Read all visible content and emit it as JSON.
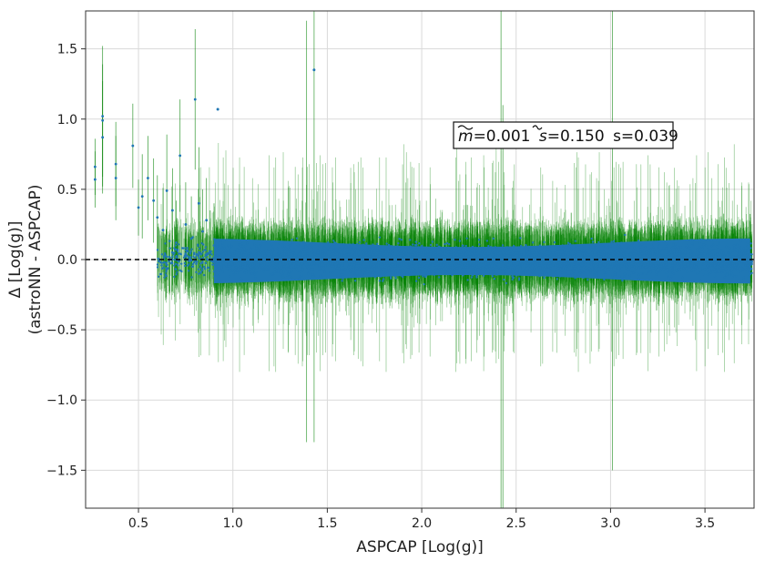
{
  "chart_data": {
    "type": "scatter",
    "title": "",
    "xlabel": "ASPCAP [Log(g)]",
    "ylabel_line1": "Δ [Log(g)]",
    "ylabel_line2": "(astroNN - ASPCAP)",
    "xlim": [
      0.22,
      3.76
    ],
    "ylim": [
      -1.77,
      1.77
    ],
    "xticks": [
      0.5,
      1.0,
      1.5,
      2.0,
      2.5,
      3.0,
      3.5
    ],
    "xtick_labels": [
      "0.5",
      "1.0",
      "1.5",
      "2.0",
      "2.5",
      "3.0",
      "3.5"
    ],
    "yticks": [
      -1.5,
      -1.0,
      -0.5,
      0.0,
      0.5,
      1.0,
      1.5
    ],
    "ytick_labels": [
      "−1.5",
      "−1.0",
      "−0.5",
      "0.0",
      "0.5",
      "1.0",
      "1.5"
    ],
    "grid": true,
    "reference_line_y": 0.0,
    "annotation": {
      "m_label": "m",
      "m_value": "=0.001",
      "s_label": "s",
      "s_value": "=0.150",
      "s2_text": "s=0.039"
    },
    "colors": {
      "points": "#1f77b4",
      "errorbars": "#008000",
      "reference_line": "#000000",
      "grid": "#d9d9d9",
      "axes": "#333333"
    },
    "series": [
      {
        "kind": "scatter_with_errorbars",
        "x": [
          0.27,
          0.27,
          0.31,
          0.31,
          0.31,
          0.38,
          0.38,
          0.47,
          0.5,
          0.52,
          0.55,
          0.58,
          0.6,
          0.63,
          0.65,
          0.68,
          0.7,
          0.72,
          0.75,
          0.78,
          0.8,
          0.82,
          0.84,
          0.86,
          0.88,
          0.9
        ],
        "y": [
          0.66,
          0.57,
          1.02,
          0.99,
          0.87,
          0.68,
          0.58,
          0.81,
          0.37,
          0.45,
          0.58,
          0.42,
          0.3,
          0.21,
          0.49,
          0.35,
          0.12,
          0.74,
          0.25,
          0.15,
          1.14,
          0.4,
          0.2,
          0.28,
          0.05,
          0.1
        ],
        "yerr": [
          0.2,
          0.2,
          0.5,
          0.4,
          0.4,
          0.3,
          0.3,
          0.3,
          0.2,
          0.3,
          0.3,
          0.3,
          0.3,
          0.3,
          0.4,
          0.3,
          0.3,
          0.4,
          0.3,
          0.3,
          0.5,
          0.4,
          0.3,
          0.3,
          0.3,
          0.3
        ]
      }
    ],
    "outliers": [
      {
        "x": 1.43,
        "y": 1.35
      },
      {
        "x": 0.92,
        "y": 1.07
      }
    ]
  }
}
